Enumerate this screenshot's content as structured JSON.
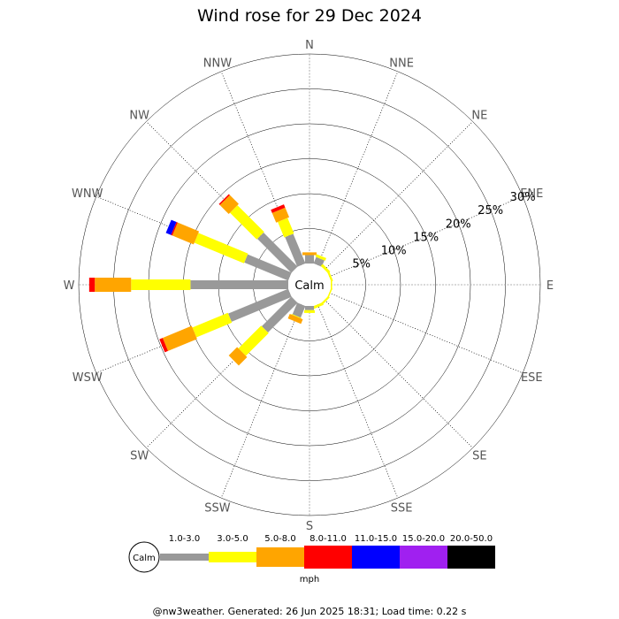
{
  "chart_data": {
    "type": "wind-rose",
    "title": "Wind rose for 29 Dec 2024",
    "directions": [
      "N",
      "NNE",
      "NE",
      "ENE",
      "E",
      "ESE",
      "SE",
      "SSE",
      "S",
      "SSW",
      "SW",
      "WSW",
      "W",
      "WNW",
      "NW",
      "NNW"
    ],
    "radial_ticks": [
      "5%",
      "10%",
      "15%",
      "20%",
      "25%",
      "30%"
    ],
    "radial_max": 30,
    "calm_label": "Calm",
    "units": "mph",
    "speed_bins": [
      {
        "label": "1.0-3.0",
        "color": "#999999"
      },
      {
        "label": "3.0-5.0",
        "color": "#ffff00"
      },
      {
        "label": "5.0-8.0",
        "color": "#ffa500"
      },
      {
        "label": "8.0-11.0",
        "color": "#ff0000"
      },
      {
        "label": "11.0-15.0",
        "color": "#0000ff"
      },
      {
        "label": "15.0-20.0",
        "color": "#a020f0"
      },
      {
        "label": "20.0-50.0",
        "color": "#000000"
      }
    ],
    "cumulative_percent": {
      "N": [
        1.2,
        1.2,
        1.6,
        1.6,
        1.6,
        1.6,
        1.6
      ],
      "NNE": [
        1.0,
        1.4,
        1.4,
        1.4,
        1.4,
        1.4,
        1.4
      ],
      "NE": [
        0.0,
        0.4,
        0.4,
        0.4,
        0.4,
        0.4,
        0.4
      ],
      "ENE": [
        0.0,
        0.3,
        0.3,
        0.3,
        0.3,
        0.3,
        0.3
      ],
      "E": [
        0.0,
        0.2,
        0.2,
        0.2,
        0.2,
        0.2,
        0.2
      ],
      "ESE": [
        0.0,
        0.2,
        0.2,
        0.2,
        0.2,
        0.2,
        0.2
      ],
      "SE": [
        0.0,
        0.3,
        0.3,
        0.3,
        0.3,
        0.3,
        0.3
      ],
      "SSE": [
        0.0,
        0.4,
        0.4,
        0.4,
        0.4,
        0.4,
        0.4
      ],
      "S": [
        0.6,
        1.0,
        1.0,
        1.0,
        1.0,
        1.0,
        1.0
      ],
      "SSW": [
        1.8,
        1.9,
        2.6,
        2.6,
        2.6,
        2.6,
        2.6
      ],
      "SW": [
        6.0,
        10.6,
        12.3,
        12.3,
        12.3,
        12.3,
        12.3
      ],
      "WSW": [
        9.3,
        14.8,
        19.3,
        19.8,
        19.8,
        19.8,
        19.8
      ],
      "W": [
        14.0,
        22.5,
        27.7,
        28.5,
        28.5,
        28.5,
        28.5
      ],
      "WNW": [
        6.8,
        14.5,
        17.8,
        18.0,
        18.8,
        18.8,
        18.8
      ],
      "NW": [
        6.9,
        12.3,
        14.1,
        14.3,
        14.3,
        14.3,
        14.3
      ],
      "NNW": [
        4.6,
        7.0,
        8.5,
        9.0,
        9.0,
        9.0,
        9.0
      ]
    }
  },
  "footer": {
    "text": "@nw3weather. Generated: 26 Jun 2025 18:31; Load time: 0.22 s"
  }
}
